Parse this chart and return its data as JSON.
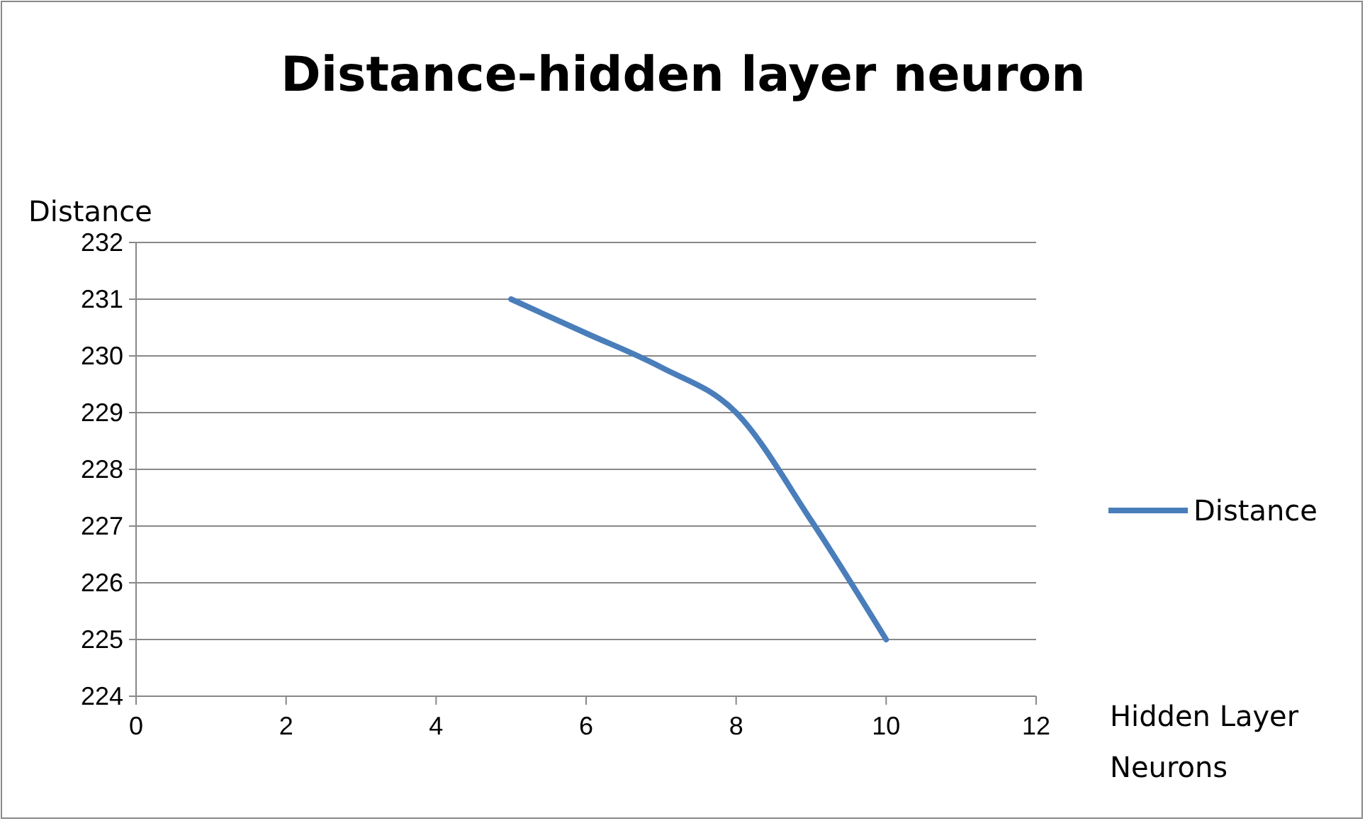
{
  "chart_data": {
    "type": "line",
    "title": "Distance-hidden layer neuron",
    "xlabel": "Hidden Layer Neurons",
    "ylabel": "Distance",
    "x": [
      5,
      6,
      7,
      8,
      9,
      10
    ],
    "series": [
      {
        "name": "Distance",
        "color": "#4a7ebb",
        "values": [
          231,
          230.4,
          229.8,
          229,
          227.1,
          225
        ]
      }
    ],
    "xlim": [
      0,
      12
    ],
    "xticks": [
      0,
      2,
      4,
      6,
      8,
      10,
      12
    ],
    "ylim": [
      224,
      232
    ],
    "yticks": [
      224,
      225,
      226,
      227,
      228,
      229,
      230,
      231,
      232
    ],
    "grid": "y",
    "legend": "right",
    "marker": "none",
    "line_style": "solid"
  }
}
